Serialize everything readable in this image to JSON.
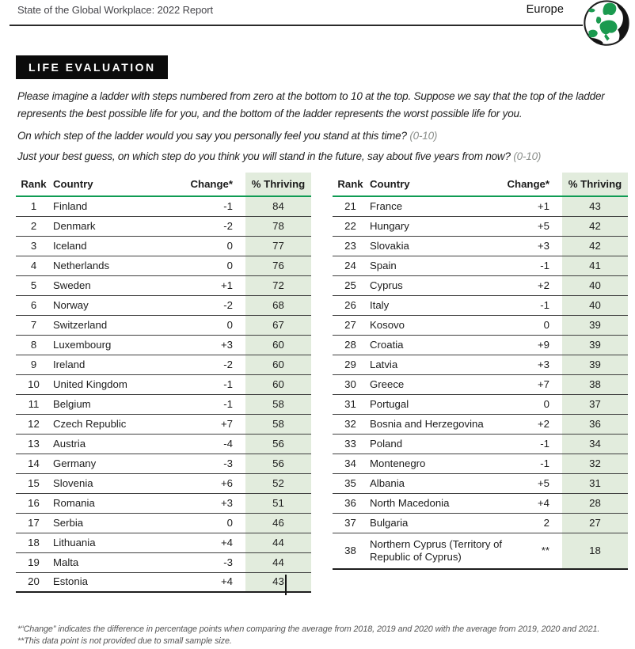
{
  "header": {
    "report_title": "State of the Global Workplace: 2022 Report",
    "region": "Europe"
  },
  "section": {
    "title": "LIFE EVALUATION",
    "intro": "Please imagine a ladder with steps numbered from zero at the bottom to 10 at the top. Suppose we say that the top of the ladder represents the best possible life for you, and the bottom of the ladder represents the worst possible life for you.",
    "question1": "On which step of the ladder would you say you personally feel you stand at this time?",
    "question1_scale": "(0-10)",
    "question2": "Just your best guess, on which step do you think you will stand in the future, say about five years from now?",
    "question2_scale": "(0-10)"
  },
  "table": {
    "headers": {
      "rank": "Rank",
      "country": "Country",
      "change": "Change*",
      "thriving": "% Thriving"
    },
    "left_rows": [
      {
        "rank": "1",
        "country": "Finland",
        "change": "-1",
        "thriving": "84"
      },
      {
        "rank": "2",
        "country": "Denmark",
        "change": "-2",
        "thriving": "78"
      },
      {
        "rank": "3",
        "country": "Iceland",
        "change": "0",
        "thriving": "77"
      },
      {
        "rank": "4",
        "country": "Netherlands",
        "change": "0",
        "thriving": "76"
      },
      {
        "rank": "5",
        "country": "Sweden",
        "change": "+1",
        "thriving": "72"
      },
      {
        "rank": "6",
        "country": "Norway",
        "change": "-2",
        "thriving": "68"
      },
      {
        "rank": "7",
        "country": "Switzerland",
        "change": "0",
        "thriving": "67"
      },
      {
        "rank": "8",
        "country": "Luxembourg",
        "change": "+3",
        "thriving": "60"
      },
      {
        "rank": "9",
        "country": "Ireland",
        "change": "-2",
        "thriving": "60"
      },
      {
        "rank": "10",
        "country": "United Kingdom",
        "change": "-1",
        "thriving": "60"
      },
      {
        "rank": "11",
        "country": "Belgium",
        "change": "-1",
        "thriving": "58"
      },
      {
        "rank": "12",
        "country": "Czech Republic",
        "change": "+7",
        "thriving": "58"
      },
      {
        "rank": "13",
        "country": "Austria",
        "change": "-4",
        "thriving": "56"
      },
      {
        "rank": "14",
        "country": "Germany",
        "change": "-3",
        "thriving": "56"
      },
      {
        "rank": "15",
        "country": "Slovenia",
        "change": "+6",
        "thriving": "52"
      },
      {
        "rank": "16",
        "country": "Romania",
        "change": "+3",
        "thriving": "51"
      },
      {
        "rank": "17",
        "country": "Serbia",
        "change": "0",
        "thriving": "46"
      },
      {
        "rank": "18",
        "country": "Lithuania",
        "change": "+4",
        "thriving": "44"
      },
      {
        "rank": "19",
        "country": "Malta",
        "change": "-3",
        "thriving": "44"
      },
      {
        "rank": "20",
        "country": "Estonia",
        "change": "+4",
        "thriving": "43"
      }
    ],
    "right_rows": [
      {
        "rank": "21",
        "country": "France",
        "change": "+1",
        "thriving": "43"
      },
      {
        "rank": "22",
        "country": "Hungary",
        "change": "+5",
        "thriving": "42"
      },
      {
        "rank": "23",
        "country": "Slovakia",
        "change": "+3",
        "thriving": "42"
      },
      {
        "rank": "24",
        "country": "Spain",
        "change": "-1",
        "thriving": "41"
      },
      {
        "rank": "25",
        "country": "Cyprus",
        "change": "+2",
        "thriving": "40"
      },
      {
        "rank": "26",
        "country": "Italy",
        "change": "-1",
        "thriving": "40"
      },
      {
        "rank": "27",
        "country": "Kosovo",
        "change": "0",
        "thriving": "39"
      },
      {
        "rank": "28",
        "country": "Croatia",
        "change": "+9",
        "thriving": "39"
      },
      {
        "rank": "29",
        "country": "Latvia",
        "change": "+3",
        "thriving": "39"
      },
      {
        "rank": "30",
        "country": "Greece",
        "change": "+7",
        "thriving": "38"
      },
      {
        "rank": "31",
        "country": "Portugal",
        "change": "0",
        "thriving": "37"
      },
      {
        "rank": "32",
        "country": "Bosnia and Herzegovina",
        "change": "+2",
        "thriving": "36"
      },
      {
        "rank": "33",
        "country": "Poland",
        "change": "-1",
        "thriving": "34"
      },
      {
        "rank": "34",
        "country": "Montenegro",
        "change": "-1",
        "thriving": "32"
      },
      {
        "rank": "35",
        "country": "Albania",
        "change": "+5",
        "thriving": "31"
      },
      {
        "rank": "36",
        "country": "North Macedonia",
        "change": "+4",
        "thriving": "28"
      },
      {
        "rank": "37",
        "country": "Bulgaria",
        "change": "2",
        "thriving": "27"
      },
      {
        "rank": "38",
        "country": "Northern Cyprus (Territory of Republic of Cyprus)",
        "change": "**",
        "thriving": "18"
      }
    ]
  },
  "footnotes": {
    "line1": "*“Change” indicates the difference in percentage points when comparing the average from 2018, 2019 and 2020 with the average from 2019, 2020 and 2021.",
    "line2": "**This data point is not provided due to small sample size."
  },
  "colors": {
    "accent_green": "#0f9b53",
    "thriving_column_bg": "#e2ecdd",
    "section_title_bg": "#0b0b0b",
    "row_border": "#3f3f3f"
  }
}
